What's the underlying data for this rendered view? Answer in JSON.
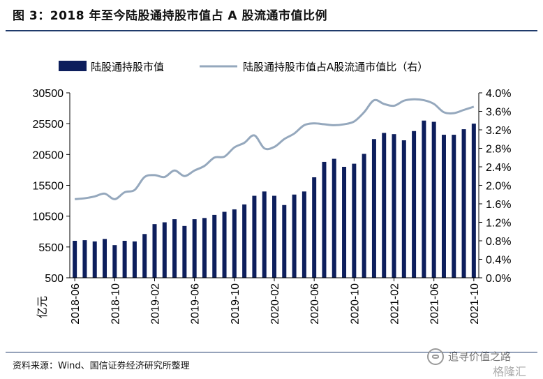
{
  "page": {
    "title": "图 3：2018 年至今陆股通持股市值占 A 股流通市值比例",
    "source": "资料来源：Wind、国信证券经济研究所整理",
    "watermark_text": "追寻价值之路",
    "watermark_brand": "格隆汇"
  },
  "chart_data": {
    "type": "bar+line",
    "title": "",
    "left_axis": {
      "label": "亿元",
      "min": 500,
      "max": 30500,
      "ticks": [
        "30500",
        "25500",
        "20500",
        "15500",
        "10500",
        "5500",
        "500"
      ]
    },
    "right_axis": {
      "min": 0.0,
      "max": 4.0,
      "ticks": [
        "4.0%",
        "3.6%",
        "3.2%",
        "2.8%",
        "2.4%",
        "2.0%",
        "1.6%",
        "1.2%",
        "0.8%",
        "0.4%",
        "0.0%"
      ]
    },
    "x_tick_labels": [
      "2018-06",
      "2018-10",
      "2019-02",
      "2019-06",
      "2019-10",
      "2020-02",
      "2020-06",
      "2020-10",
      "2021-02",
      "2021-06",
      "2021-10"
    ],
    "legend": [
      {
        "name": "陆股通持股市值",
        "kind": "bar",
        "color": "#0d1e5c"
      },
      {
        "name": "陆股通持股市值占A股流通市值比（右）",
        "kind": "line",
        "color": "#95a8bd"
      }
    ],
    "bar_values": [
      6500,
      6600,
      6400,
      6800,
      5800,
      6500,
      6400,
      7600,
      9200,
      9500,
      10000,
      8900,
      10000,
      10200,
      10700,
      11200,
      11600,
      12400,
      13800,
      14500,
      13800,
      12300,
      14000,
      14500,
      16800,
      19300,
      19800,
      18500,
      19000,
      20600,
      23000,
      24000,
      23800,
      22800,
      24300,
      26000,
      25800,
      23700,
      23700,
      24600,
      25500
    ],
    "line_values": [
      1.7,
      1.72,
      1.76,
      1.82,
      1.7,
      1.85,
      1.9,
      2.18,
      2.22,
      2.18,
      2.32,
      2.2,
      2.32,
      2.42,
      2.6,
      2.62,
      2.82,
      2.92,
      3.08,
      2.8,
      2.83,
      3.0,
      3.12,
      3.3,
      3.34,
      3.32,
      3.3,
      3.32,
      3.38,
      3.58,
      3.84,
      3.76,
      3.72,
      3.83,
      3.86,
      3.84,
      3.76,
      3.58,
      3.56,
      3.63,
      3.7
    ],
    "colors": {
      "bar": "#0d1e5c",
      "line": "#95a8bd",
      "rule": "#1f3a6b"
    }
  }
}
